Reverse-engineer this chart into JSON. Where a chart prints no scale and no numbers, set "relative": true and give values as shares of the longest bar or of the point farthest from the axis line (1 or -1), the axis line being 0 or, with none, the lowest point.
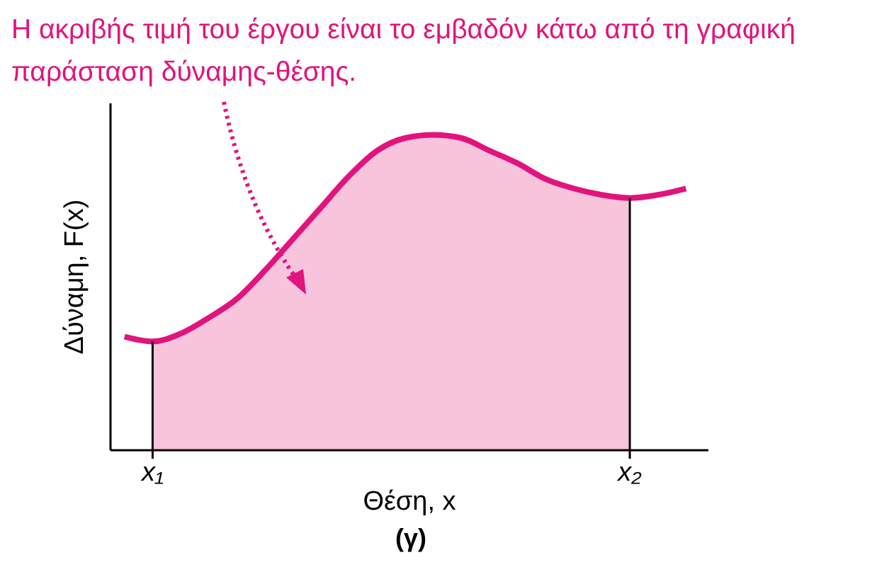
{
  "chart_data": {
    "type": "line",
    "title": "Η ακριβής τιμή του έργου είναι το εμβαδόν κάτω από τη γραφική παράσταση δύναμης-θέσης.",
    "xlabel": "Θέση, x",
    "ylabel": "Δύναμη, F(x)",
    "annotations": [
      "(γ)"
    ],
    "relative": true,
    "tick_labels": "x",
    "marker": "none",
    "line_style": "solid",
    "categories": [
      null,
      "x₁",
      null,
      null,
      null,
      null,
      null,
      null,
      null,
      null,
      null,
      null,
      null,
      null,
      null,
      null,
      null,
      null,
      "x₂",
      null,
      null
    ],
    "series": [
      {
        "type": "area",
        "color": "#f7c4dc",
        "values": [
          null,
          0.345,
          0.37,
          0.42,
          0.48,
          0.57,
          0.67,
          0.77,
          0.87,
          0.95,
          0.99,
          1,
          0.99,
          0.95,
          0.91,
          0.86,
          0.83,
          0.81,
          0.8,
          null,
          null
        ]
      },
      {
        "type": "line",
        "color": "#e2137d",
        "values": [
          0.36,
          0.345,
          0.37,
          0.42,
          0.48,
          0.57,
          0.67,
          0.77,
          0.87,
          0.95,
          0.99,
          1,
          0.99,
          0.95,
          0.91,
          0.86,
          0.83,
          0.81,
          0.8,
          0.81,
          0.83
        ]
      }
    ],
    "ref_lines": [
      {
        "axis": "x",
        "value": "x₁",
        "color": "#000000"
      },
      {
        "axis": "x",
        "value": "x₂",
        "color": "#000000"
      }
    ]
  }
}
